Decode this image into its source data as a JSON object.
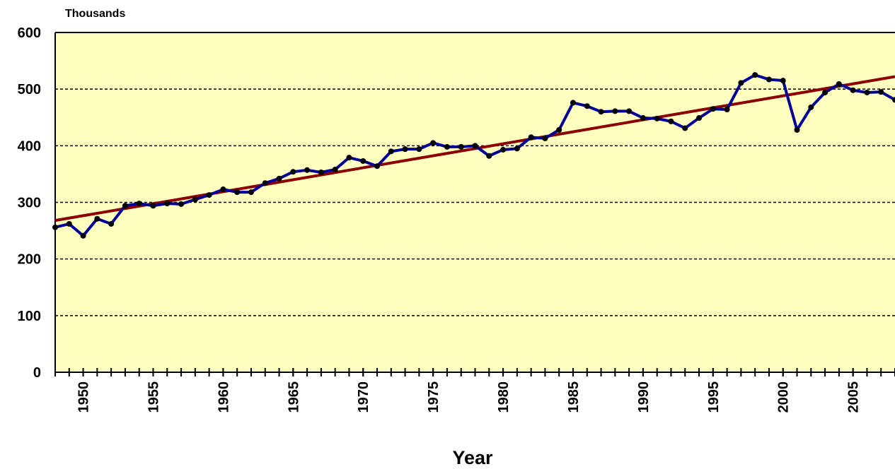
{
  "chart_data": {
    "type": "line",
    "y_unit_label": "Thousands",
    "x_label": "Year",
    "x": [
      1948,
      1949,
      1950,
      1951,
      1952,
      1953,
      1954,
      1955,
      1956,
      1957,
      1958,
      1959,
      1960,
      1961,
      1962,
      1963,
      1964,
      1965,
      1966,
      1967,
      1968,
      1969,
      1970,
      1971,
      1972,
      1973,
      1974,
      1975,
      1976,
      1977,
      1978,
      1979,
      1980,
      1981,
      1982,
      1983,
      1984,
      1985,
      1986,
      1987,
      1988,
      1989,
      1990,
      1991,
      1992,
      1993,
      1994,
      1995,
      1996,
      1997,
      1998,
      1999,
      2000,
      2001,
      2002,
      2003,
      2004,
      2005,
      2006,
      2007,
      2008
    ],
    "series": [
      {
        "color": "#000099",
        "marker_color": "#000000",
        "values": [
          256,
          262,
          241,
          271,
          262,
          294,
          298,
          294,
          298,
          297,
          305,
          313,
          323,
          318,
          318,
          334,
          342,
          354,
          357,
          353,
          358,
          379,
          373,
          364,
          390,
          394,
          394,
          405,
          398,
          398,
          400,
          382,
          393,
          395,
          415,
          413,
          428,
          476,
          470,
          460,
          461,
          461,
          449,
          448,
          443,
          431,
          449,
          465,
          464,
          511,
          525,
          517,
          515,
          428,
          468,
          494,
          509,
          498,
          494,
          495,
          481
        ]
      }
    ],
    "trend": {
      "color": "#8b0000",
      "x": [
        1948,
        2008
      ],
      "values": [
        268,
        522
      ]
    },
    "xlim": [
      1948,
      2008
    ],
    "xticks": [
      1950,
      1955,
      1960,
      1965,
      1970,
      1975,
      1980,
      1985,
      1990,
      1995,
      2000,
      2005
    ],
    "ylim": [
      0,
      600
    ],
    "yticks": [
      0,
      100,
      200,
      300,
      400,
      500,
      600
    ],
    "grid": true,
    "background": "#ffffc0"
  }
}
